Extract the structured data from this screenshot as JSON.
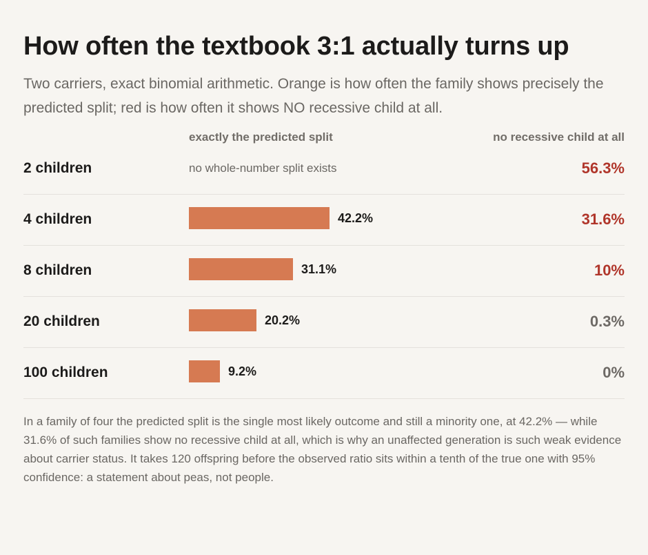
{
  "title": "How often the textbook 3:1 actually turns up",
  "subtitle": "Two carriers, exact binomial arithmetic. Orange is how often the family shows precisely the predicted split; red is how often it shows NO recessive child at all.",
  "columns": {
    "exact_label": "exactly the predicted split",
    "none_label": "no recessive child at all"
  },
  "colors": {
    "bar": "#d67a52",
    "high_none": "#b0352a",
    "low_none": "#6d6965"
  },
  "chart_data": {
    "type": "bar",
    "orientation": "horizontal",
    "title": "How often the textbook 3:1 actually turns up",
    "categories": [
      "2 children",
      "4 children",
      "8 children",
      "20 children",
      "100 children"
    ],
    "series": [
      {
        "name": "exactly the predicted split",
        "values": [
          null,
          42.2,
          31.1,
          20.2,
          9.2
        ],
        "labels": [
          "no whole-number split exists",
          "42.2%",
          "31.1%",
          "20.2%",
          "9.2%"
        ],
        "color": "#d67a52"
      },
      {
        "name": "no recessive child at all",
        "values": [
          56.3,
          31.6,
          10,
          0.3,
          0
        ],
        "labels": [
          "56.3%",
          "31.6%",
          "10%",
          "0.3%",
          "0%"
        ],
        "emphasis": [
          "high",
          "high",
          "high",
          "low",
          "low"
        ]
      }
    ],
    "xlim": [
      0,
      100
    ],
    "unit": "%"
  },
  "footnote": "In a family of four the predicted split is the single most likely outcome and still a minority one, at 42.2% — while 31.6% of such families show no recessive child at all, which is why an unaffected generation is such weak evidence about carrier status. It takes 120 offspring before the observed ratio sits within a tenth of the true one with 95% confidence: a statement about peas, not people."
}
